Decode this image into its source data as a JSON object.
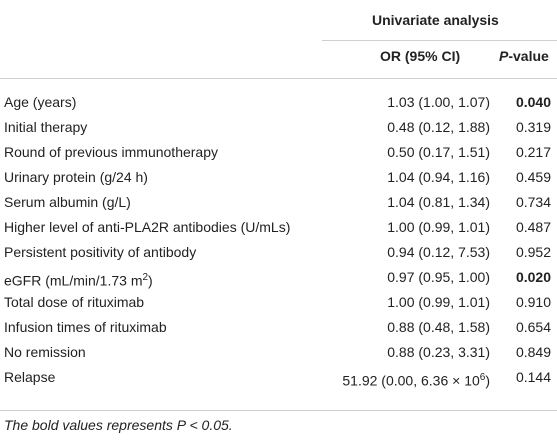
{
  "header": {
    "group_title": "Univariate analysis",
    "col_or": "OR (95% CI)",
    "col_p_italic": "P",
    "col_p_rest": "-value"
  },
  "rows": [
    {
      "variable": "Age (years)",
      "or": "1.03 (1.00, 1.07)",
      "p": "0.040",
      "bold": true
    },
    {
      "variable": "Initial therapy",
      "or": "0.48 (0.12, 1.88)",
      "p": "0.319",
      "bold": false
    },
    {
      "variable": "Round of previous immunotherapy",
      "or": "0.50 (0.17, 1.51)",
      "p": "0.217",
      "bold": false
    },
    {
      "variable": "Urinary protein (g/24 h)",
      "or": "1.04 (0.94, 1.16)",
      "p": "0.459",
      "bold": false
    },
    {
      "variable": "Serum albumin (g/L)",
      "or": "1.04 (0.81, 1.34)",
      "p": "0.734",
      "bold": false
    },
    {
      "variable": "Higher level of anti-PLA2R antibodies (U/mLs)",
      "or": "1.00 (0.99, 1.01)",
      "p": "0.487",
      "bold": false
    },
    {
      "variable": "Persistent positivity of antibody",
      "or": "0.94 (0.12, 7.53)",
      "p": "0.952",
      "bold": false
    },
    {
      "variable": "eGFR (mL/min/1.73 m",
      "var_sup": "2",
      "var_after": ")",
      "or": "0.97 (0.95, 1.00)",
      "p": "0.020",
      "bold": true
    },
    {
      "variable": "Total dose of rituximab",
      "or": "1.00 (0.99, 1.01)",
      "p": "0.910",
      "bold": false
    },
    {
      "variable": "Infusion times of rituximab",
      "or": "0.88 (0.48, 1.58)",
      "p": "0.654",
      "bold": false
    },
    {
      "variable": "No remission",
      "or": "0.88 (0.23, 3.31)",
      "p": "0.849",
      "bold": false
    },
    {
      "variable": "Relapse",
      "or": "51.92 (0.00, 6.36 × 10",
      "or_sup": "6",
      "or_after": ")",
      "p": "0.144",
      "bold": false
    }
  ],
  "footnote": "The bold values represents P < 0.05."
}
